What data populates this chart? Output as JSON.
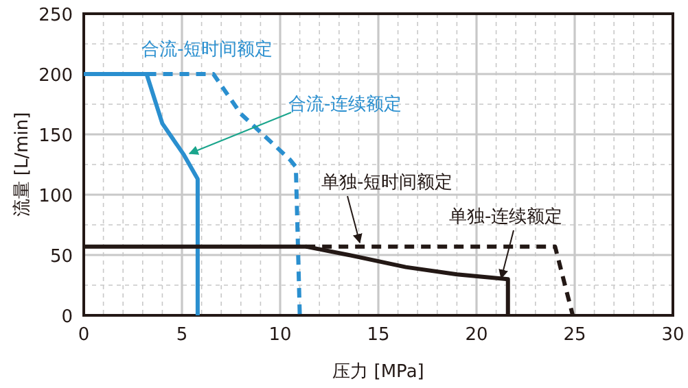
{
  "chart_data": {
    "type": "line",
    "xlabel": "压力 [MPa]",
    "ylabel": "流量 [L/min]",
    "xlim": [
      0,
      30
    ],
    "ylim": [
      0,
      250
    ],
    "xticks": [
      0,
      {
        "value": 1,
        "label": null
      },
      {
        "value": 2,
        "label": null
      },
      {
        "value": 3,
        "label": null
      },
      {
        "value": 4,
        "label": null
      },
      5,
      {
        "value": 6,
        "label": null
      },
      {
        "value": 7,
        "label": null
      },
      {
        "value": 8,
        "label": null
      },
      {
        "value": 9,
        "label": null
      },
      10,
      {
        "value": 11,
        "label": null
      },
      {
        "value": 12,
        "label": null
      },
      {
        "value": 13,
        "label": null
      },
      {
        "value": 14,
        "label": null
      },
      15,
      {
        "value": 16,
        "label": null
      },
      {
        "value": 17,
        "label": null
      },
      {
        "value": 18,
        "label": null
      },
      {
        "value": 19,
        "label": null
      },
      20,
      {
        "value": 21,
        "label": null
      },
      {
        "value": 22,
        "label": null
      },
      {
        "value": 23,
        "label": null
      },
      {
        "value": 24,
        "label": null
      },
      25,
      {
        "value": 26,
        "label": null
      },
      {
        "value": 27,
        "label": null
      },
      {
        "value": 28,
        "label": null
      },
      {
        "value": 29,
        "label": null
      },
      30
    ],
    "yticks": [
      0,
      {
        "value": 25,
        "label": null
      },
      50,
      {
        "value": 75,
        "label": null
      },
      100,
      {
        "value": 125,
        "label": null
      },
      150,
      {
        "value": 175,
        "label": null
      },
      200,
      {
        "value": 225,
        "label": null
      },
      250
    ],
    "grid": true,
    "marker": "none",
    "series": [
      {
        "name": "合流-短时间额定",
        "color": "#2a8fcf",
        "line_style": "dashed",
        "x": [
          3.2,
          6.6,
          8.0,
          10.5,
          10.8,
          11.0
        ],
        "values": [
          200,
          200,
          167,
          129,
          123,
          0
        ]
      },
      {
        "name": "合流-连续额定",
        "color": "#2a8fcf",
        "line_style": "solid",
        "x": [
          0,
          3.2,
          4.0,
          5.1,
          5.8,
          5.8
        ],
        "values": [
          200,
          200,
          159,
          133,
          113,
          0
        ]
      },
      {
        "name": "单独-短时间额定",
        "color": "#231815",
        "line_style": "dashed",
        "x": [
          11.3,
          24.0,
          24.9
        ],
        "values": [
          57,
          57,
          0
        ]
      },
      {
        "name": "单独-连续额定",
        "color": "#231815",
        "line_style": "solid",
        "x": [
          0,
          11.3,
          13.5,
          16.4,
          19.0,
          21.6,
          21.6
        ],
        "values": [
          57,
          57,
          50,
          40,
          34,
          30,
          0
        ]
      }
    ]
  }
}
